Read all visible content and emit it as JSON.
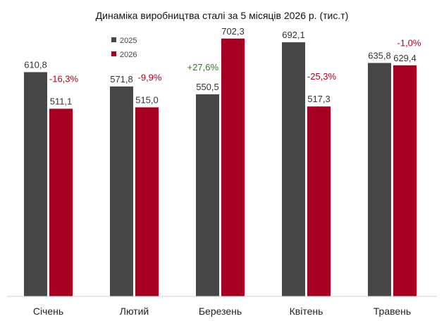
{
  "chart_data": {
    "type": "bar",
    "title": "Динаміка виробництва сталі за 5 місяців 2026 р. (тис.т)",
    "categories": [
      "Січень",
      "Лютий",
      "Березень",
      "Квітень",
      "Травень"
    ],
    "series": [
      {
        "name": "2025",
        "color": "#464646",
        "values": [
          610.8,
          571.8,
          550.5,
          692.1,
          635.8
        ],
        "labels": [
          "610,8",
          "571,8",
          "550,5",
          "692,1",
          "635,8"
        ]
      },
      {
        "name": "2026",
        "color": "#a50021",
        "values": [
          511.1,
          515.0,
          702.3,
          517.3,
          629.4
        ],
        "labels": [
          "511,1",
          "515,0",
          "702,3",
          "517,3",
          "629,4"
        ]
      }
    ],
    "changes": [
      "-16,3%",
      "-9,9%",
      "+27,6%",
      "-25,3%",
      "-1,0%"
    ],
    "change_colors": {
      "positive": "#2e7d1e",
      "negative": "#b3001b"
    },
    "ylim": [
      0,
      750
    ],
    "legend": "top-left",
    "grid": false,
    "xlabel": "",
    "ylabel": ""
  }
}
